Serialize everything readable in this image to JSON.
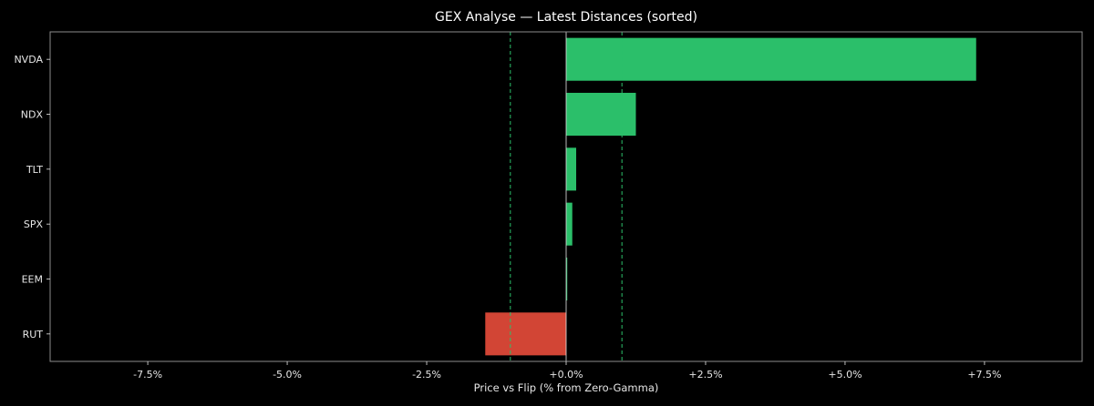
{
  "chart_data": {
    "type": "bar",
    "orientation": "horizontal",
    "title": "GEX Analyse — Latest Distances (sorted)",
    "xlabel": "Price vs Flip (% from Zero-Gamma)",
    "ylabel": "",
    "xlim": [
      -9.25,
      9.25
    ],
    "x_ticks": [
      -7.5,
      -5.0,
      -2.5,
      0.0,
      2.5,
      5.0,
      7.5
    ],
    "x_tick_labels": [
      "-7.5%",
      "-5.0%",
      "-2.5%",
      "+0.0%",
      "+2.5%",
      "+5.0%",
      "+7.5%"
    ],
    "categories": [
      "NVDA",
      "NDX",
      "TLT",
      "SPX",
      "EEM",
      "RUT"
    ],
    "values": [
      7.35,
      1.25,
      0.18,
      0.11,
      0.02,
      -1.45
    ],
    "reference_lines": [
      -1.0,
      1.0
    ],
    "grid": false,
    "colors": {
      "positive": "#2bbf6a",
      "negative": "#d24535",
      "reference_line": "#2bbf6a",
      "zero_line": "#e6e6e6",
      "frame": "#8c8c8c",
      "background": "#000000",
      "text": "#e6e6e6"
    }
  }
}
